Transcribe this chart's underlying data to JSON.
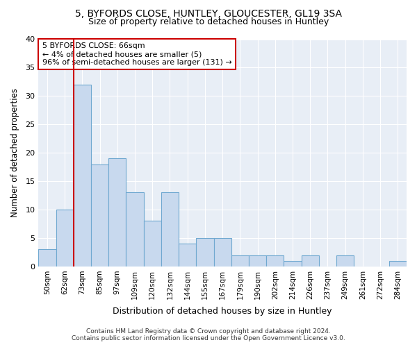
{
  "title1": "5, BYFORDS CLOSE, HUNTLEY, GLOUCESTER, GL19 3SA",
  "title2": "Size of property relative to detached houses in Huntley",
  "xlabel": "Distribution of detached houses by size in Huntley",
  "ylabel": "Number of detached properties",
  "categories": [
    "50sqm",
    "62sqm",
    "73sqm",
    "85sqm",
    "97sqm",
    "109sqm",
    "120sqm",
    "132sqm",
    "144sqm",
    "155sqm",
    "167sqm",
    "179sqm",
    "190sqm",
    "202sqm",
    "214sqm",
    "226sqm",
    "237sqm",
    "249sqm",
    "261sqm",
    "272sqm",
    "284sqm"
  ],
  "values": [
    3,
    10,
    32,
    18,
    19,
    13,
    8,
    13,
    4,
    5,
    5,
    2,
    2,
    2,
    1,
    2,
    0,
    2,
    0,
    0,
    1
  ],
  "bar_color": "#c8d9ee",
  "bar_edge_color": "#6fa8d0",
  "annotation_box_color": "#ffffff",
  "annotation_box_edge": "#cc0000",
  "vline_color": "#cc0000",
  "vline_x": 1.5,
  "annotation_text": "5 BYFORDS CLOSE: 66sqm\n← 4% of detached houses are smaller (5)\n96% of semi-detached houses are larger (131) →",
  "footer1": "Contains HM Land Registry data © Crown copyright and database right 2024.",
  "footer2": "Contains public sector information licensed under the Open Government Licence v3.0.",
  "ylim": [
    0,
    40
  ],
  "yticks": [
    0,
    5,
    10,
    15,
    20,
    25,
    30,
    35,
    40
  ],
  "fig_background": "#ffffff",
  "plot_background": "#e8eef6"
}
